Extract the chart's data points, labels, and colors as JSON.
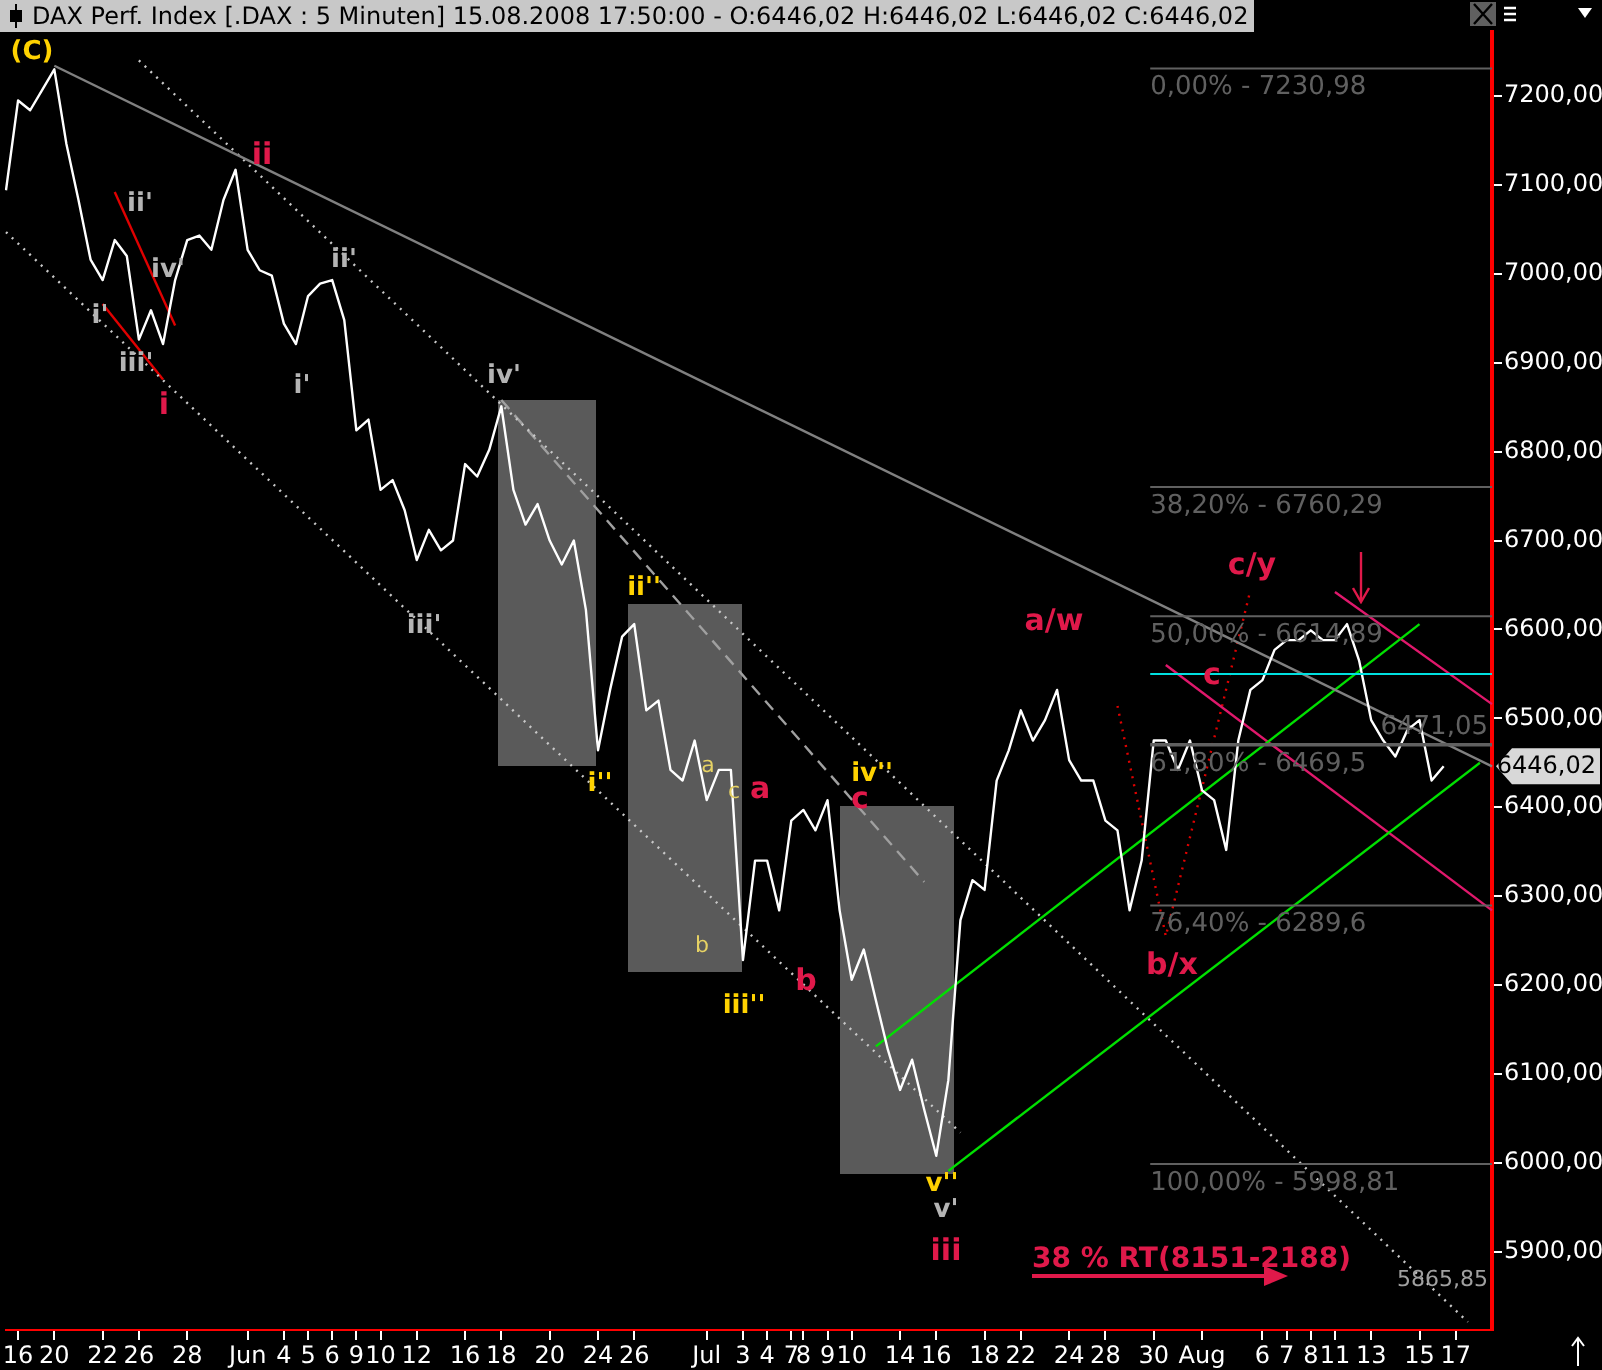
{
  "chart_data": {
    "type": "line",
    "title": "DAX Perf. Index [.DAX : 5 Minuten] 15.08.2008 17:50:00 - O:6446,02 H:6446,02 L:6446,02 C:6446,02",
    "categories": [
      null,
      "16",
      null,
      null,
      "20",
      null,
      null,
      null,
      "22",
      null,
      null,
      "26",
      null,
      null,
      null,
      "28",
      null,
      null,
      null,
      null,
      "Jun",
      null,
      null,
      "4",
      null,
      "5",
      null,
      "6",
      null,
      "9",
      null,
      "10",
      null,
      null,
      "12",
      null,
      null,
      null,
      "16",
      null,
      null,
      "18",
      null,
      null,
      null,
      "20",
      null,
      null,
      null,
      "24",
      null,
      null,
      "26",
      null,
      null,
      null,
      null,
      null,
      "Jul",
      null,
      null,
      "3",
      null,
      "4",
      null,
      "7",
      "8",
      null,
      "9",
      null,
      "10",
      null,
      null,
      null,
      "14",
      null,
      null,
      "16",
      null,
      null,
      null,
      "18",
      null,
      null,
      "22",
      null,
      null,
      null,
      "24",
      null,
      null,
      "28",
      null,
      null,
      null,
      "30",
      null,
      null,
      null,
      "Aug",
      null,
      null,
      null,
      null,
      "6",
      null,
      "7",
      null,
      "8",
      null,
      "11",
      null,
      null,
      "13",
      null,
      null,
      null,
      "15",
      null,
      null,
      "17",
      null,
      null,
      null
    ],
    "ylim": [
      5812,
      7272
    ],
    "yticks": [
      {
        "value": 5900,
        "label": "5900,00"
      },
      {
        "value": 6000,
        "label": "6000,00"
      },
      {
        "value": 6100,
        "label": "6100,00"
      },
      {
        "value": 6200,
        "label": "6200,00"
      },
      {
        "value": 6300,
        "label": "6300,00"
      },
      {
        "value": 6400,
        "label": "6400,00"
      },
      {
        "value": 6500,
        "label": "6500,00"
      },
      {
        "value": 6600,
        "label": "6600,00"
      },
      {
        "value": 6700,
        "label": "6700,00"
      },
      {
        "value": 6800,
        "label": "6800,00"
      },
      {
        "value": 6900,
        "label": "6900,00"
      },
      {
        "value": 7000,
        "label": "7000,00"
      },
      {
        "value": 7100,
        "label": "7100,00"
      },
      {
        "value": 7200,
        "label": "7200,00"
      }
    ],
    "grid": false,
    "legend": false,
    "marker": "none",
    "series": [
      {
        "type": "line",
        "color": "#ffffff",
        "line_style": "solid",
        "values": [
          7094,
          7195,
          7184,
          7207,
          7230,
          7146,
          7083,
          7016,
          6993,
          7038,
          7020,
          6926,
          6959,
          6921,
          6993,
          7038,
          7043,
          7027,
          7083,
          7117,
          7027,
          7004,
          6998,
          6944,
          6921,
          6975,
          6989,
          6993,
          6948,
          6824,
          6836,
          6757,
          6768,
          6734,
          6678,
          6712,
          6689,
          6700,
          6786,
          6772,
          6802,
          6851,
          6757,
          6718,
          6741,
          6700,
          6673,
          6700,
          6622,
          6464,
          6532,
          6592,
          6606,
          6509,
          6520,
          6442,
          6430,
          6475,
          6408,
          6442,
          6442,
          6228,
          6340,
          6340,
          6284,
          6385,
          6397,
          6374,
          6408,
          6284,
          6206,
          6240,
          6183,
          6127,
          6082,
          6116,
          6060,
          6008,
          6093,
          6273,
          6318,
          6307,
          6430,
          6464,
          6509,
          6475,
          6498,
          6532,
          6453,
          6430,
          6430,
          6385,
          6374,
          6284,
          6340,
          6475,
          6475,
          6442,
          6475,
          6419,
          6408,
          6352,
          6475,
          6532,
          6543,
          6577,
          6588,
          6588,
          6599,
          6588,
          6588,
          6606,
          6565,
          6498,
          6475,
          6457,
          6487,
          6498,
          6430,
          6446,
          null,
          null,
          null,
          null
        ]
      },
      {
        "type": "line",
        "color": "#808080",
        "line_style": "solid",
        "values": [
          null,
          null,
          null,
          null,
          7234,
          null,
          null,
          null,
          null,
          null,
          null,
          null,
          null,
          null,
          null,
          null,
          null,
          null,
          null,
          null,
          null,
          null,
          null,
          null,
          null,
          null,
          null,
          null,
          null,
          null,
          null,
          null,
          null,
          null,
          null,
          null,
          null,
          null,
          null,
          null,
          null,
          null,
          null,
          null,
          null,
          null,
          null,
          null,
          null,
          null,
          null,
          null,
          null,
          null,
          null,
          null,
          null,
          null,
          null,
          null,
          null,
          null,
          null,
          null,
          null,
          null,
          null,
          null,
          null,
          null,
          null,
          null,
          null,
          null,
          null,
          null,
          null,
          null,
          null,
          null,
          null,
          null,
          null,
          null,
          null,
          null,
          null,
          null,
          null,
          null,
          null,
          null,
          null,
          null,
          null,
          null,
          null,
          null,
          null,
          null,
          null,
          null,
          null,
          null,
          null,
          null,
          null,
          null,
          null,
          null,
          null,
          null,
          null,
          null,
          null,
          null,
          null,
          null,
          null,
          null,
          null,
          null,
          null,
          6446
        ]
      },
      {
        "type": "line",
        "color": "#c8c8c8",
        "line_style": "dotted",
        "values": [
          null,
          null,
          null,
          null,
          null,
          null,
          null,
          null,
          null,
          null,
          null,
          7240,
          null,
          null,
          null,
          null,
          null,
          null,
          null,
          null,
          null,
          null,
          null,
          null,
          null,
          null,
          null,
          null,
          null,
          null,
          null,
          null,
          null,
          null,
          null,
          null,
          null,
          null,
          null,
          null,
          null,
          null,
          null,
          null,
          null,
          null,
          null,
          null,
          null,
          null,
          null,
          null,
          null,
          null,
          null,
          null,
          null,
          null,
          null,
          null,
          null,
          null,
          null,
          null,
          null,
          null,
          null,
          null,
          null,
          null,
          null,
          null,
          null,
          null,
          null,
          null,
          null,
          null,
          null,
          null,
          null,
          null,
          null,
          null,
          null,
          null,
          null,
          null,
          null,
          null,
          null,
          null,
          null,
          null,
          null,
          null,
          null,
          null,
          null,
          null,
          null,
          null,
          null,
          null,
          null,
          null,
          null,
          null,
          null,
          null,
          null,
          null,
          null,
          null,
          null,
          null,
          null,
          null,
          null,
          null,
          null,
          5821,
          null,
          null
        ]
      },
      {
        "type": "line",
        "color": "#c8c8c8",
        "line_style": "dotted",
        "values": [
          7047,
          null,
          null,
          null,
          null,
          null,
          null,
          null,
          null,
          null,
          null,
          null,
          null,
          null,
          null,
          null,
          null,
          null,
          null,
          null,
          null,
          null,
          null,
          null,
          null,
          null,
          null,
          null,
          null,
          null,
          null,
          null,
          null,
          null,
          null,
          null,
          null,
          null,
          null,
          null,
          null,
          null,
          null,
          null,
          null,
          null,
          null,
          null,
          null,
          null,
          null,
          null,
          null,
          null,
          null,
          null,
          null,
          null,
          null,
          null,
          null,
          null,
          null,
          null,
          null,
          null,
          null,
          null,
          null,
          null,
          null,
          null,
          null,
          null,
          null,
          null,
          null,
          null,
          null,
          6034,
          null,
          null,
          null,
          null,
          null,
          null,
          null,
          null,
          null,
          null,
          null,
          null,
          null,
          null,
          null,
          null,
          null,
          null,
          null,
          null,
          null,
          null,
          null,
          null,
          null,
          null,
          null,
          null,
          null,
          null,
          null,
          null,
          null,
          null,
          null,
          null,
          null,
          null,
          null,
          null,
          null,
          null,
          null,
          null
        ]
      },
      {
        "type": "line",
        "color": "#a0a0a0",
        "line_style": "dashed",
        "values": [
          null,
          null,
          null,
          null,
          null,
          null,
          null,
          null,
          null,
          null,
          null,
          null,
          null,
          null,
          null,
          null,
          null,
          null,
          null,
          null,
          null,
          null,
          null,
          null,
          null,
          null,
          null,
          null,
          null,
          null,
          null,
          null,
          null,
          null,
          null,
          null,
          null,
          null,
          null,
          null,
          null,
          6858,
          null,
          null,
          null,
          null,
          null,
          null,
          null,
          null,
          null,
          null,
          null,
          null,
          null,
          null,
          null,
          null,
          null,
          null,
          null,
          null,
          null,
          null,
          null,
          null,
          null,
          null,
          null,
          null,
          null,
          null,
          null,
          null,
          null,
          null,
          6316,
          null,
          null,
          null,
          null,
          null,
          null,
          null,
          null,
          null,
          null,
          null,
          null,
          null,
          null,
          null,
          null,
          null,
          null,
          null,
          null,
          null,
          null,
          null,
          null,
          null,
          null,
          null,
          null,
          null,
          null,
          null,
          null,
          null,
          null,
          null,
          null,
          null,
          null,
          null,
          null,
          null,
          null,
          null,
          null,
          null,
          null,
          null
        ]
      },
      {
        "type": "line",
        "color": "#00e000",
        "line_style": "solid",
        "values": [
          null,
          null,
          null,
          null,
          null,
          null,
          null,
          null,
          null,
          null,
          null,
          null,
          null,
          null,
          null,
          null,
          null,
          null,
          null,
          null,
          null,
          null,
          null,
          null,
          null,
          null,
          null,
          null,
          null,
          null,
          null,
          null,
          null,
          null,
          null,
          null,
          null,
          null,
          null,
          null,
          null,
          null,
          null,
          null,
          null,
          null,
          null,
          null,
          null,
          null,
          null,
          null,
          null,
          null,
          null,
          null,
          null,
          null,
          null,
          null,
          null,
          null,
          null,
          null,
          null,
          null,
          null,
          null,
          null,
          null,
          null,
          null,
          null,
          null,
          null,
          null,
          null,
          null,
          5991,
          null,
          null,
          null,
          null,
          null,
          null,
          null,
          null,
          null,
          null,
          null,
          null,
          null,
          null,
          null,
          null,
          null,
          null,
          null,
          null,
          null,
          null,
          null,
          null,
          null,
          null,
          null,
          null,
          null,
          null,
          null,
          null,
          null,
          null,
          null,
          null,
          null,
          null,
          null,
          null,
          null,
          null,
          null,
          6450,
          null
        ]
      },
      {
        "type": "line",
        "color": "#00e000",
        "line_style": "solid",
        "values": [
          null,
          null,
          null,
          null,
          null,
          null,
          null,
          null,
          null,
          null,
          null,
          null,
          null,
          null,
          null,
          null,
          null,
          null,
          null,
          null,
          null,
          null,
          null,
          null,
          null,
          null,
          null,
          null,
          null,
          null,
          null,
          null,
          null,
          null,
          null,
          null,
          null,
          null,
          null,
          null,
          null,
          null,
          null,
          null,
          null,
          null,
          null,
          null,
          null,
          null,
          null,
          null,
          null,
          null,
          null,
          null,
          null,
          null,
          null,
          null,
          null,
          null,
          null,
          null,
          null,
          null,
          null,
          null,
          null,
          null,
          null,
          null,
          6131,
          null,
          null,
          null,
          null,
          null,
          null,
          null,
          null,
          null,
          null,
          null,
          null,
          null,
          null,
          null,
          null,
          null,
          null,
          null,
          null,
          null,
          null,
          null,
          null,
          null,
          null,
          null,
          null,
          null,
          null,
          null,
          null,
          null,
          null,
          null,
          null,
          null,
          null,
          null,
          null,
          null,
          null,
          null,
          null,
          6606,
          null,
          null,
          null,
          null,
          null,
          null
        ]
      },
      {
        "type": "line",
        "color": "#e0186c",
        "line_style": "solid",
        "values": [
          null,
          null,
          null,
          null,
          null,
          null,
          null,
          null,
          null,
          null,
          null,
          null,
          null,
          null,
          null,
          null,
          null,
          null,
          null,
          null,
          null,
          null,
          null,
          null,
          null,
          null,
          null,
          null,
          null,
          null,
          null,
          null,
          null,
          null,
          null,
          null,
          null,
          null,
          null,
          null,
          null,
          null,
          null,
          null,
          null,
          null,
          null,
          null,
          null,
          null,
          null,
          null,
          null,
          null,
          null,
          null,
          null,
          null,
          null,
          null,
          null,
          null,
          null,
          null,
          null,
          null,
          null,
          null,
          null,
          null,
          null,
          null,
          null,
          null,
          null,
          null,
          null,
          null,
          null,
          null,
          null,
          null,
          null,
          null,
          null,
          null,
          null,
          null,
          null,
          null,
          null,
          null,
          null,
          null,
          null,
          null,
          null,
          null,
          null,
          null,
          null,
          null,
          null,
          null,
          null,
          null,
          null,
          null,
          null,
          null,
          6642,
          null,
          null,
          null,
          null,
          null,
          null,
          null,
          null,
          null,
          null,
          null,
          null,
          6516
        ]
      },
      {
        "type": "line",
        "color": "#e0186c",
        "line_style": "solid",
        "values": [
          null,
          null,
          null,
          null,
          null,
          null,
          null,
          null,
          null,
          null,
          null,
          null,
          null,
          null,
          null,
          null,
          null,
          null,
          null,
          null,
          null,
          null,
          null,
          null,
          null,
          null,
          null,
          null,
          null,
          null,
          null,
          null,
          null,
          null,
          null,
          null,
          null,
          null,
          null,
          null,
          null,
          null,
          null,
          null,
          null,
          null,
          null,
          null,
          null,
          null,
          null,
          null,
          null,
          null,
          null,
          null,
          null,
          null,
          null,
          null,
          null,
          null,
          null,
          null,
          null,
          null,
          null,
          null,
          null,
          null,
          null,
          null,
          null,
          null,
          null,
          null,
          null,
          null,
          null,
          null,
          null,
          null,
          null,
          null,
          null,
          null,
          null,
          null,
          null,
          null,
          null,
          null,
          null,
          null,
          null,
          null,
          6560,
          null,
          null,
          null,
          null,
          null,
          null,
          null,
          null,
          null,
          null,
          null,
          null,
          null,
          null,
          null,
          null,
          null,
          null,
          null,
          null,
          null,
          null,
          null,
          null,
          null,
          null,
          6284
        ]
      },
      {
        "type": "line",
        "color": "#e00000",
        "line_style": "solid",
        "values": [
          null,
          null,
          null,
          null,
          null,
          null,
          null,
          null,
          null,
          7092,
          null,
          null,
          null,
          null,
          6942,
          null,
          null,
          null,
          null,
          null,
          null,
          null,
          null,
          null,
          null,
          null,
          null,
          null,
          null,
          null,
          null,
          null,
          null,
          null,
          null,
          null,
          null,
          null,
          null,
          null,
          null,
          null,
          null,
          null,
          null,
          null,
          null,
          null,
          null,
          null,
          null,
          null,
          null,
          null,
          null,
          null,
          null,
          null,
          null,
          null,
          null,
          null,
          null,
          null,
          null,
          null,
          null,
          null,
          null,
          null,
          null,
          null,
          null,
          null,
          null,
          null,
          null,
          null,
          null,
          null,
          null,
          null,
          null,
          null,
          null,
          null,
          null,
          null,
          null,
          null,
          null,
          null,
          null,
          null,
          null,
          null,
          null,
          null,
          null,
          null,
          null,
          null,
          null,
          null,
          null,
          null,
          null,
          null,
          null,
          null,
          null,
          null,
          null,
          null,
          null,
          null,
          null,
          null,
          null,
          null,
          null,
          null,
          null,
          null
        ]
      },
      {
        "type": "line",
        "color": "#e00000",
        "line_style": "solid",
        "values": [
          null,
          null,
          null,
          null,
          null,
          null,
          null,
          null,
          6966,
          null,
          null,
          null,
          null,
          6881,
          null,
          null,
          null,
          null,
          null,
          null,
          null,
          null,
          null,
          null,
          null,
          null,
          null,
          null,
          null,
          null,
          null,
          null,
          null,
          null,
          null,
          null,
          null,
          null,
          null,
          null,
          null,
          null,
          null,
          null,
          null,
          null,
          null,
          null,
          null,
          null,
          null,
          null,
          null,
          null,
          null,
          null,
          null,
          null,
          null,
          null,
          null,
          null,
          null,
          null,
          null,
          null,
          null,
          null,
          null,
          null,
          null,
          null,
          null,
          null,
          null,
          null,
          null,
          null,
          null,
          null,
          null,
          null,
          null,
          null,
          null,
          null,
          null,
          null,
          null,
          null,
          null,
          null,
          null,
          null,
          null,
          null,
          null,
          null,
          null,
          null,
          null,
          null,
          null,
          null,
          null,
          null,
          null,
          null,
          null,
          null,
          null,
          null,
          null,
          null,
          null,
          null,
          null,
          null,
          null,
          null,
          null,
          null,
          null,
          null
        ]
      },
      {
        "type": "line",
        "color": "#e00000",
        "line_style": "dotted",
        "values": [
          null,
          null,
          null,
          null,
          null,
          null,
          null,
          null,
          null,
          null,
          null,
          null,
          null,
          null,
          null,
          null,
          null,
          null,
          null,
          null,
          null,
          null,
          null,
          null,
          null,
          null,
          null,
          null,
          null,
          null,
          null,
          null,
          null,
          null,
          null,
          null,
          null,
          null,
          null,
          null,
          null,
          null,
          null,
          null,
          null,
          null,
          null,
          null,
          null,
          null,
          null,
          null,
          null,
          null,
          null,
          null,
          null,
          null,
          null,
          null,
          null,
          null,
          null,
          null,
          null,
          null,
          null,
          null,
          null,
          null,
          null,
          null,
          null,
          null,
          null,
          null,
          null,
          null,
          null,
          null,
          null,
          null,
          null,
          null,
          null,
          null,
          null,
          null,
          null,
          null,
          null,
          null,
          6514,
          null,
          null,
          null,
          6255,
          null,
          null,
          null,
          null,
          null,
          null,
          6644,
          null,
          null,
          null,
          null,
          null,
          null,
          null,
          null,
          null,
          null,
          null,
          null,
          null,
          null,
          null,
          null,
          null,
          null,
          null,
          null
        ]
      }
    ],
    "ref_lines": [
      {
        "axis": "y",
        "value": 7230.98,
        "color": "#606060"
      },
      {
        "axis": "y",
        "value": 6760.29,
        "color": "#606060"
      },
      {
        "axis": "y",
        "value": 6614.89,
        "color": "#606060"
      },
      {
        "axis": "y",
        "value": 6469.5,
        "color": "#606060"
      },
      {
        "axis": "y",
        "value": 6471.05,
        "color": "#606060"
      },
      {
        "axis": "y",
        "value": 6289.6,
        "color": "#606060"
      },
      {
        "axis": "y",
        "value": 5998.81,
        "color": "#606060"
      },
      {
        "axis": "y",
        "value": 6550,
        "color": "#00e0e0"
      }
    ],
    "annotations": [
      "(C)",
      "ii",
      "i",
      "iii",
      "a/w",
      "c/y",
      "c",
      "b/x",
      "a",
      "b",
      "c",
      "ii'",
      "i'",
      "iv'",
      "iii'",
      "ii'",
      "i'",
      "iv'",
      "iii'",
      "v'",
      "ii''",
      "i''",
      "iii''",
      "iv''",
      "v''",
      "a",
      "b",
      "c",
      "38 % RT(8151-2188)",
      "5865,85",
      "6446,02",
      {
        "text": "0,00% - 7230,98",
        "y": 7230.98
      },
      {
        "text": "38,20% - 6760,29",
        "y": 6760.29
      },
      {
        "text": "50,00% - 6614,89",
        "y": 6614.89
      },
      {
        "text": "61,80% - 6469,5",
        "y": 6469.5
      },
      {
        "text": "6471,05",
        "y": 6471.05
      },
      {
        "text": "76,40% - 6289,6",
        "y": 6289.6
      },
      {
        "text": "100,00% - 5998,81",
        "y": 5998.81
      }
    ]
  }
}
